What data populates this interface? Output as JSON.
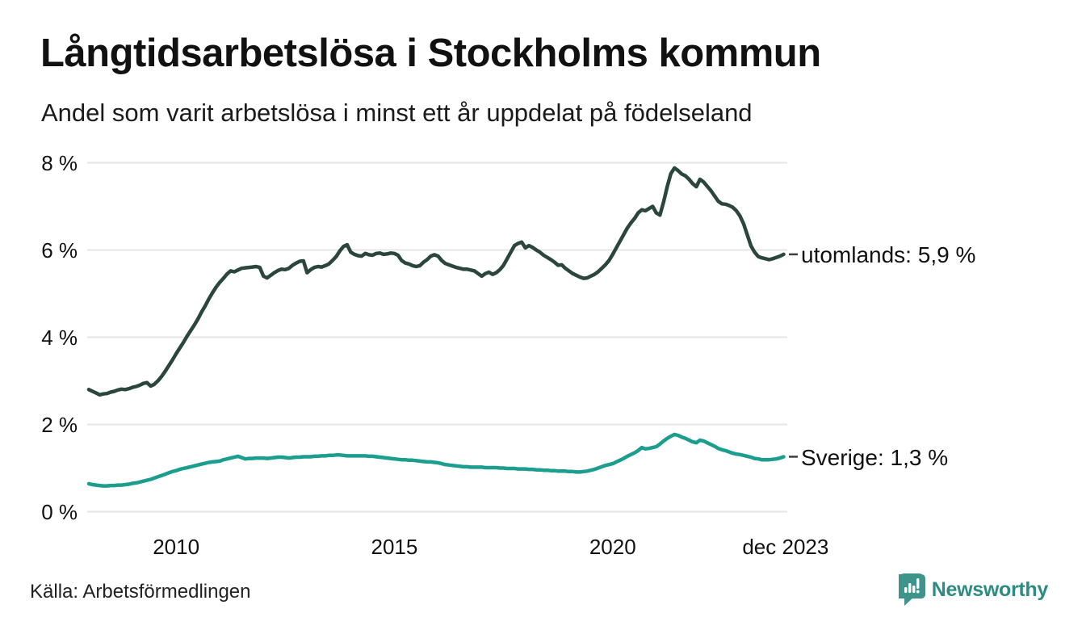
{
  "chart": {
    "title": "Långtidsarbetslösa i Stockholms kommun",
    "subtitle": "Andel som varit arbetslösa i minst ett år uppdelat på födelseland",
    "source": "Källa: Arbetsförmedlingen",
    "brand": "Newsworthy"
  },
  "colors": {
    "utomlands_line": "#2b463c",
    "sverige_line": "#1b9e8e",
    "gridline": "#e6e6e6",
    "label_dash": "#3d3d3d",
    "brand_teal": "#3e948b",
    "text": "#111111"
  },
  "chart_data": {
    "type": "line",
    "title": "Långtidsarbetslösa i Stockholms kommun",
    "subtitle": "Andel som varit arbetslösa i minst ett år uppdelat på födelseland",
    "source": "Källa: Arbetsförmedlingen",
    "grid": "horizontal",
    "legend_position": "line-end-labels",
    "ylim": [
      0,
      8.3
    ],
    "x_start_year": 2008,
    "points_per_year": 12,
    "y_ticks": [
      {
        "label": "8 %",
        "value": 8
      },
      {
        "label": "6 %",
        "value": 6
      },
      {
        "label": "4 %",
        "value": 4
      },
      {
        "label": "2 %",
        "value": 2
      },
      {
        "label": "0 %",
        "value": 0
      }
    ],
    "x_ticks": [
      {
        "label": "2010",
        "year": 2010
      },
      {
        "label": "2015",
        "year": 2015
      },
      {
        "label": "2020",
        "year": 2020
      },
      {
        "label": "dec 2023",
        "year": 2023.96
      }
    ],
    "series": [
      {
        "name": "utomlands",
        "end_label": "utomlands: 5,9 %",
        "last_value_display": "5,9 %",
        "color": "#2b463c",
        "values": [
          2.8,
          2.76,
          2.72,
          2.68,
          2.7,
          2.71,
          2.74,
          2.76,
          2.79,
          2.81,
          2.8,
          2.82,
          2.85,
          2.87,
          2.9,
          2.94,
          2.96,
          2.88,
          2.92,
          3.0,
          3.1,
          3.22,
          3.35,
          3.48,
          3.62,
          3.75,
          3.88,
          4.02,
          4.15,
          4.28,
          4.42,
          4.58,
          4.72,
          4.88,
          5.02,
          5.15,
          5.26,
          5.35,
          5.45,
          5.52,
          5.5,
          5.54,
          5.58,
          5.59,
          5.6,
          5.61,
          5.62,
          5.6,
          5.4,
          5.36,
          5.42,
          5.48,
          5.53,
          5.56,
          5.55,
          5.58,
          5.65,
          5.7,
          5.74,
          5.75,
          5.48,
          5.55,
          5.6,
          5.62,
          5.61,
          5.64,
          5.68,
          5.76,
          5.85,
          5.98,
          6.08,
          6.12,
          5.95,
          5.9,
          5.87,
          5.86,
          5.92,
          5.89,
          5.88,
          5.92,
          5.93,
          5.9,
          5.91,
          5.93,
          5.92,
          5.88,
          5.76,
          5.7,
          5.68,
          5.64,
          5.62,
          5.64,
          5.72,
          5.78,
          5.86,
          5.89,
          5.86,
          5.76,
          5.69,
          5.66,
          5.63,
          5.6,
          5.58,
          5.56,
          5.56,
          5.54,
          5.52,
          5.46,
          5.4,
          5.46,
          5.49,
          5.44,
          5.48,
          5.55,
          5.65,
          5.8,
          5.95,
          6.1,
          6.15,
          6.18,
          6.05,
          6.1,
          6.06,
          6.0,
          5.95,
          5.88,
          5.83,
          5.78,
          5.72,
          5.65,
          5.66,
          5.58,
          5.52,
          5.46,
          5.42,
          5.38,
          5.35,
          5.36,
          5.4,
          5.44,
          5.5,
          5.58,
          5.66,
          5.76,
          5.9,
          6.05,
          6.2,
          6.35,
          6.5,
          6.62,
          6.72,
          6.85,
          6.92,
          6.9,
          6.95,
          7.0,
          6.85,
          6.8,
          7.1,
          7.45,
          7.75,
          7.88,
          7.82,
          7.74,
          7.7,
          7.62,
          7.52,
          7.45,
          7.62,
          7.56,
          7.46,
          7.36,
          7.24,
          7.12,
          7.06,
          7.05,
          7.02,
          6.98,
          6.9,
          6.78,
          6.6,
          6.35,
          6.1,
          5.95,
          5.85,
          5.82,
          5.8,
          5.78,
          5.8,
          5.83,
          5.86,
          5.9
        ]
      },
      {
        "name": "Sverige",
        "end_label": "Sverige: 1,3 %",
        "last_value_display": "1,3 %",
        "color": "#1b9e8e",
        "values": [
          0.64,
          0.62,
          0.61,
          0.6,
          0.59,
          0.59,
          0.6,
          0.6,
          0.61,
          0.61,
          0.62,
          0.63,
          0.65,
          0.66,
          0.68,
          0.7,
          0.72,
          0.74,
          0.77,
          0.8,
          0.83,
          0.86,
          0.89,
          0.92,
          0.94,
          0.97,
          0.99,
          1.01,
          1.03,
          1.05,
          1.07,
          1.09,
          1.11,
          1.13,
          1.14,
          1.15,
          1.16,
          1.19,
          1.21,
          1.23,
          1.25,
          1.27,
          1.24,
          1.21,
          1.22,
          1.22,
          1.23,
          1.23,
          1.23,
          1.22,
          1.23,
          1.24,
          1.25,
          1.25,
          1.24,
          1.23,
          1.24,
          1.25,
          1.25,
          1.26,
          1.26,
          1.26,
          1.27,
          1.27,
          1.28,
          1.28,
          1.29,
          1.29,
          1.3,
          1.3,
          1.29,
          1.28,
          1.28,
          1.28,
          1.28,
          1.28,
          1.28,
          1.27,
          1.27,
          1.26,
          1.25,
          1.24,
          1.23,
          1.22,
          1.21,
          1.2,
          1.19,
          1.19,
          1.18,
          1.18,
          1.17,
          1.16,
          1.15,
          1.14,
          1.14,
          1.13,
          1.12,
          1.1,
          1.08,
          1.07,
          1.06,
          1.05,
          1.04,
          1.03,
          1.03,
          1.02,
          1.02,
          1.02,
          1.02,
          1.01,
          1.01,
          1.01,
          1.01,
          1.0,
          1.0,
          0.99,
          0.99,
          0.99,
          0.98,
          0.98,
          0.98,
          0.97,
          0.97,
          0.96,
          0.96,
          0.95,
          0.95,
          0.94,
          0.94,
          0.93,
          0.93,
          0.93,
          0.92,
          0.92,
          0.91,
          0.91,
          0.92,
          0.93,
          0.95,
          0.97,
          1.0,
          1.03,
          1.06,
          1.08,
          1.1,
          1.14,
          1.18,
          1.22,
          1.27,
          1.31,
          1.35,
          1.4,
          1.47,
          1.44,
          1.45,
          1.47,
          1.49,
          1.55,
          1.62,
          1.68,
          1.73,
          1.77,
          1.75,
          1.71,
          1.68,
          1.64,
          1.6,
          1.58,
          1.64,
          1.62,
          1.58,
          1.54,
          1.5,
          1.45,
          1.42,
          1.4,
          1.37,
          1.34,
          1.32,
          1.31,
          1.29,
          1.27,
          1.25,
          1.22,
          1.21,
          1.19,
          1.19,
          1.19,
          1.2,
          1.21,
          1.23,
          1.26
        ]
      }
    ]
  }
}
